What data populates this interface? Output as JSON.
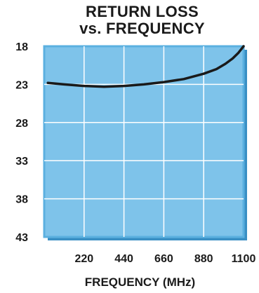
{
  "chart_data": {
    "type": "line",
    "title": "RETURN LOSS",
    "subtitle": "vs.  FREQUENCY",
    "xlabel": "FREQUENCY (MHz)",
    "ylabel": "",
    "x_ticks": [
      "220",
      "440",
      "660",
      "880",
      "1100"
    ],
    "y_ticks": [
      "18",
      "23",
      "28",
      "33",
      "38",
      "43"
    ],
    "xlim": [
      0,
      1100
    ],
    "ylim": [
      18,
      43
    ],
    "y_inverted": true,
    "grid": true,
    "series": [
      {
        "x": [
          20,
          110,
          220,
          330,
          440,
          550,
          660,
          770,
          880,
          950,
          1000,
          1040,
          1070,
          1100
        ],
        "y": [
          22.8,
          23.0,
          23.2,
          23.3,
          23.2,
          23.0,
          22.7,
          22.3,
          21.6,
          21.0,
          20.3,
          19.6,
          18.9,
          18.0
        ]
      }
    ],
    "colors": {
      "grid_fill": "#7ec3ea",
      "grid_line": "#ffffff",
      "frame": "#5bb0e0",
      "shadow": "#3a8fc4",
      "curve": "#1a1a1a"
    }
  }
}
